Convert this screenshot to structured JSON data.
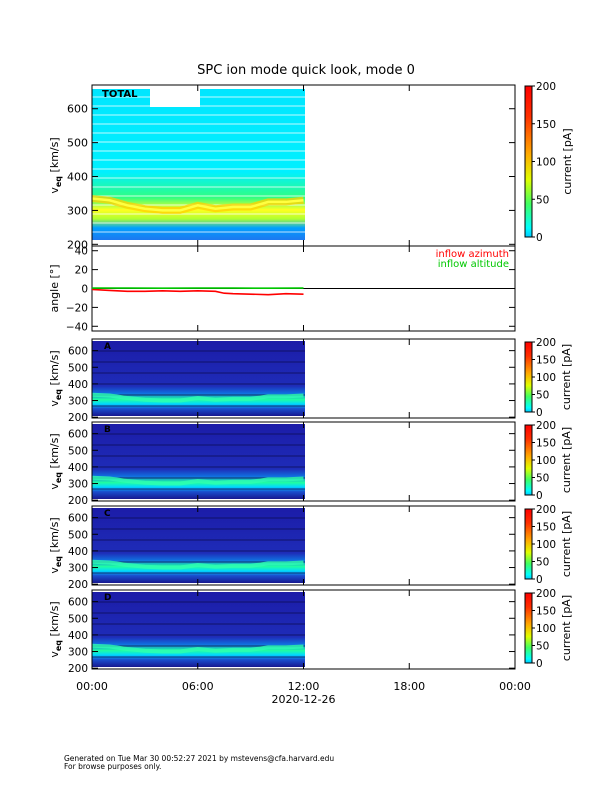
{
  "title": "SPC ion mode quick look, mode 0",
  "footer": {
    "line1": "Generated on Tue Mar 30 00:52:27 2021 by mstevens@cfa.harvard.edu",
    "line2": "For browse purposes only."
  },
  "xaxis": {
    "ticks": [
      "00:00",
      "06:00",
      "12:00",
      "18:00",
      "00:00"
    ],
    "date": "2020-12-26"
  },
  "colorbar": {
    "label": "current [pA]",
    "ticks_main": [
      "0",
      "50",
      "100",
      "150",
      "200"
    ],
    "ticks_small": [
      "0",
      "50",
      "100",
      "150",
      "200"
    ]
  },
  "colors": {
    "azimuth": "#ff0000",
    "altitude": "#00c800",
    "cyan": "#00e0ff",
    "navy": "#1a1a9e"
  },
  "chart_data": [
    {
      "type": "heatmap",
      "panel": "TOTAL",
      "ylabel": "v_eq [km/s]",
      "ylim": [
        195,
        670
      ],
      "yticks": [
        "200",
        "300",
        "400",
        "500",
        "600"
      ],
      "xlim_hours": [
        0,
        24
      ],
      "data_end_hours": 12,
      "colorbar_range": [
        0,
        200
      ],
      "peak_velocity_kms": [
        {
          "t": 0,
          "v": 335
        },
        {
          "t": 1,
          "v": 330
        },
        {
          "t": 2,
          "v": 315
        },
        {
          "t": 3,
          "v": 305
        },
        {
          "t": 4,
          "v": 300
        },
        {
          "t": 5,
          "v": 300
        },
        {
          "t": 6,
          "v": 315
        },
        {
          "t": 7,
          "v": 305
        },
        {
          "t": 8,
          "v": 310
        },
        {
          "t": 9,
          "v": 310
        },
        {
          "t": 10,
          "v": 325
        },
        {
          "t": 11,
          "v": 325
        },
        {
          "t": 12,
          "v": 330
        }
      ]
    },
    {
      "type": "line",
      "ylabel": "angle [°]",
      "ylim": [
        -45,
        45
      ],
      "yticks": [
        "40",
        "20",
        "0",
        "−20",
        "−40"
      ],
      "series": [
        {
          "name": "inflow azimuth",
          "color": "#ff0000",
          "x_hours": [
            0,
            1,
            2,
            3,
            4,
            5,
            6,
            7,
            7.5,
            8,
            9,
            10,
            11,
            12
          ],
          "values": [
            -1,
            -2,
            -3,
            -3,
            -2.5,
            -3,
            -2.5,
            -3,
            -5,
            -5.5,
            -6,
            -6.5,
            -5.5,
            -6
          ]
        },
        {
          "name": "inflow altitude",
          "color": "#00c800",
          "x_hours": [
            0,
            2,
            4,
            6,
            8,
            10,
            12
          ],
          "values": [
            0.5,
            0.5,
            0.3,
            0.5,
            0.5,
            0.3,
            0.5
          ]
        }
      ]
    },
    {
      "type": "heatmap",
      "panel": "A",
      "ylabel": "v_eq [km/s]",
      "ylim": [
        195,
        670
      ],
      "yticks": [
        "200",
        "300",
        "400",
        "500",
        "600"
      ],
      "colorbar_range": [
        0,
        200
      ]
    },
    {
      "type": "heatmap",
      "panel": "B",
      "ylabel": "v_eq [km/s]",
      "ylim": [
        195,
        670
      ],
      "yticks": [
        "200",
        "300",
        "400",
        "500",
        "600"
      ],
      "colorbar_range": [
        0,
        200
      ]
    },
    {
      "type": "heatmap",
      "panel": "C",
      "ylabel": "v_eq [km/s]",
      "ylim": [
        195,
        670
      ],
      "yticks": [
        "200",
        "300",
        "400",
        "500",
        "600"
      ],
      "colorbar_range": [
        0,
        200
      ]
    },
    {
      "type": "heatmap",
      "panel": "D",
      "ylabel": "v_eq [km/s]",
      "ylim": [
        195,
        670
      ],
      "yticks": [
        "200",
        "300",
        "400",
        "500",
        "600"
      ],
      "colorbar_range": [
        0,
        200
      ]
    }
  ]
}
